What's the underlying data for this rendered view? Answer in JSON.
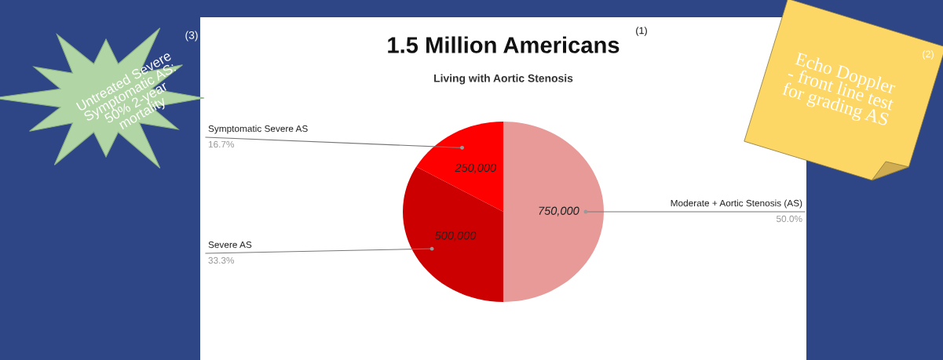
{
  "chart_data": {
    "type": "pie",
    "title": "1.5 Million Americans",
    "subtitle": "Living with Aortic Stenosis",
    "categories": [
      "Moderate + Aortic Stenosis (AS)",
      "Severe AS",
      "Symptomatic Severe AS"
    ],
    "values": [
      750000,
      500000,
      250000
    ],
    "colors": [
      "#e89a98",
      "#cc0000",
      "#ff0000"
    ],
    "value_labels": [
      "750,000",
      "500,000",
      "250,000"
    ],
    "annotations": [
      "50.0%",
      "33.3%",
      "16.7%",
      "(1)",
      "Untreated Severe\nSymptomatic AS:\n50% 2-year\nmortality",
      "(3)",
      "Echo Doppler\n- front line test\nfor grading AS",
      "(2)"
    ]
  }
}
